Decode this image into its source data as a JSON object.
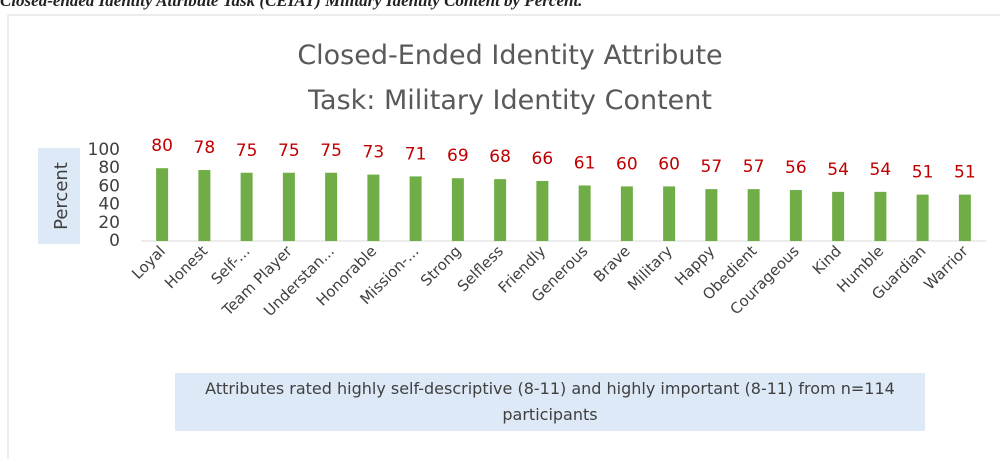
{
  "caption": "Closed-ended Identity Attribute Task (CEIAT) Military Identity Content by Percent.",
  "chart_data": {
    "type": "bar",
    "title": "Closed-Ended Identity Attribute Task: Military Identity Content",
    "y_label": "Percent",
    "categories": [
      "Loyal",
      "Honest",
      "Self-...",
      "Team Player",
      "Understan...",
      "Honorable",
      "Mission-...",
      "Strong",
      "Selfless",
      "Friendly",
      "Generous",
      "Brave",
      "Military",
      "Happy",
      "Obedient",
      "Courageous",
      "Kind",
      "Humble",
      "Guardian",
      "Warrior"
    ],
    "values": [
      80,
      78,
      75,
      75,
      75,
      73,
      71,
      69,
      68,
      66,
      61,
      60,
      60,
      57,
      57,
      56,
      54,
      54,
      51,
      51
    ],
    "color": "#70ad47",
    "label_color": "#c00000",
    "ylim": [
      0,
      100
    ],
    "yticks": [
      0,
      20,
      40,
      60,
      80,
      100
    ],
    "grid": false,
    "note": "Attributes rated highly self-descriptive (8-11) and highly important (8-11) from n=114 participants"
  }
}
